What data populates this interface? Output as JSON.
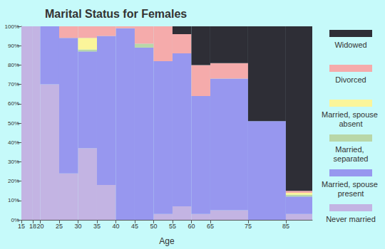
{
  "chart_data": {
    "type": "mosaic",
    "title": "Marital Status for Females",
    "x_label": "Age",
    "bins": [
      15,
      18,
      20,
      25,
      30,
      35,
      40,
      45,
      50,
      55,
      60,
      65,
      75,
      85,
      92
    ],
    "stacked": true,
    "series": [
      {
        "name": "Never married",
        "color": "#c3b4e3",
        "values": [
          100,
          100,
          70,
          24,
          37,
          18,
          0,
          0,
          3,
          7,
          3,
          5,
          0,
          3
        ]
      },
      {
        "name": "Married, spouse present",
        "color": "#9797ef",
        "values": [
          0,
          0,
          30,
          70,
          50,
          77,
          99,
          89,
          79,
          79,
          61,
          68,
          51,
          9
        ]
      },
      {
        "name": "Married, separated",
        "color": "#b9d7a8",
        "values": [
          0,
          0,
          0,
          0,
          1,
          0,
          0,
          2,
          0,
          0,
          0,
          0,
          0,
          1
        ]
      },
      {
        "name": "Married, spouse absent",
        "color": "#fbf59a",
        "values": [
          0,
          0,
          0,
          0,
          6,
          0,
          0,
          0,
          0,
          0,
          0,
          0,
          0,
          1
        ]
      },
      {
        "name": "Divorced",
        "color": "#f5abab",
        "values": [
          0,
          0,
          0,
          6,
          6,
          5,
          1,
          9,
          18,
          10,
          16,
          8,
          0,
          1
        ]
      },
      {
        "name": "Widowed",
        "color": "#2e2e36",
        "values": [
          0,
          0,
          0,
          0,
          0,
          0,
          0,
          0,
          0,
          4,
          20,
          19,
          49,
          85
        ]
      }
    ],
    "xlim": [
      15,
      92
    ],
    "xticks": [
      15,
      18,
      20,
      25,
      30,
      35,
      40,
      45,
      50,
      55,
      60,
      65,
      75,
      85
    ],
    "ylim": [
      0,
      100
    ],
    "yticks": [
      {
        "value": 0,
        "label": "0%"
      },
      {
        "value": 10,
        "label": "10%"
      },
      {
        "value": 20,
        "label": "20%"
      },
      {
        "value": 30,
        "label": "30%"
      },
      {
        "value": 40,
        "label": "40%"
      },
      {
        "value": 50,
        "label": "50%"
      },
      {
        "value": 60,
        "label": "60%"
      },
      {
        "value": 70,
        "label": "70%"
      },
      {
        "value": 80,
        "label": "80%"
      },
      {
        "value": 90,
        "label": "90%"
      },
      {
        "value": 100,
        "label": "100%"
      }
    ],
    "grid": false,
    "legend": "right"
  }
}
